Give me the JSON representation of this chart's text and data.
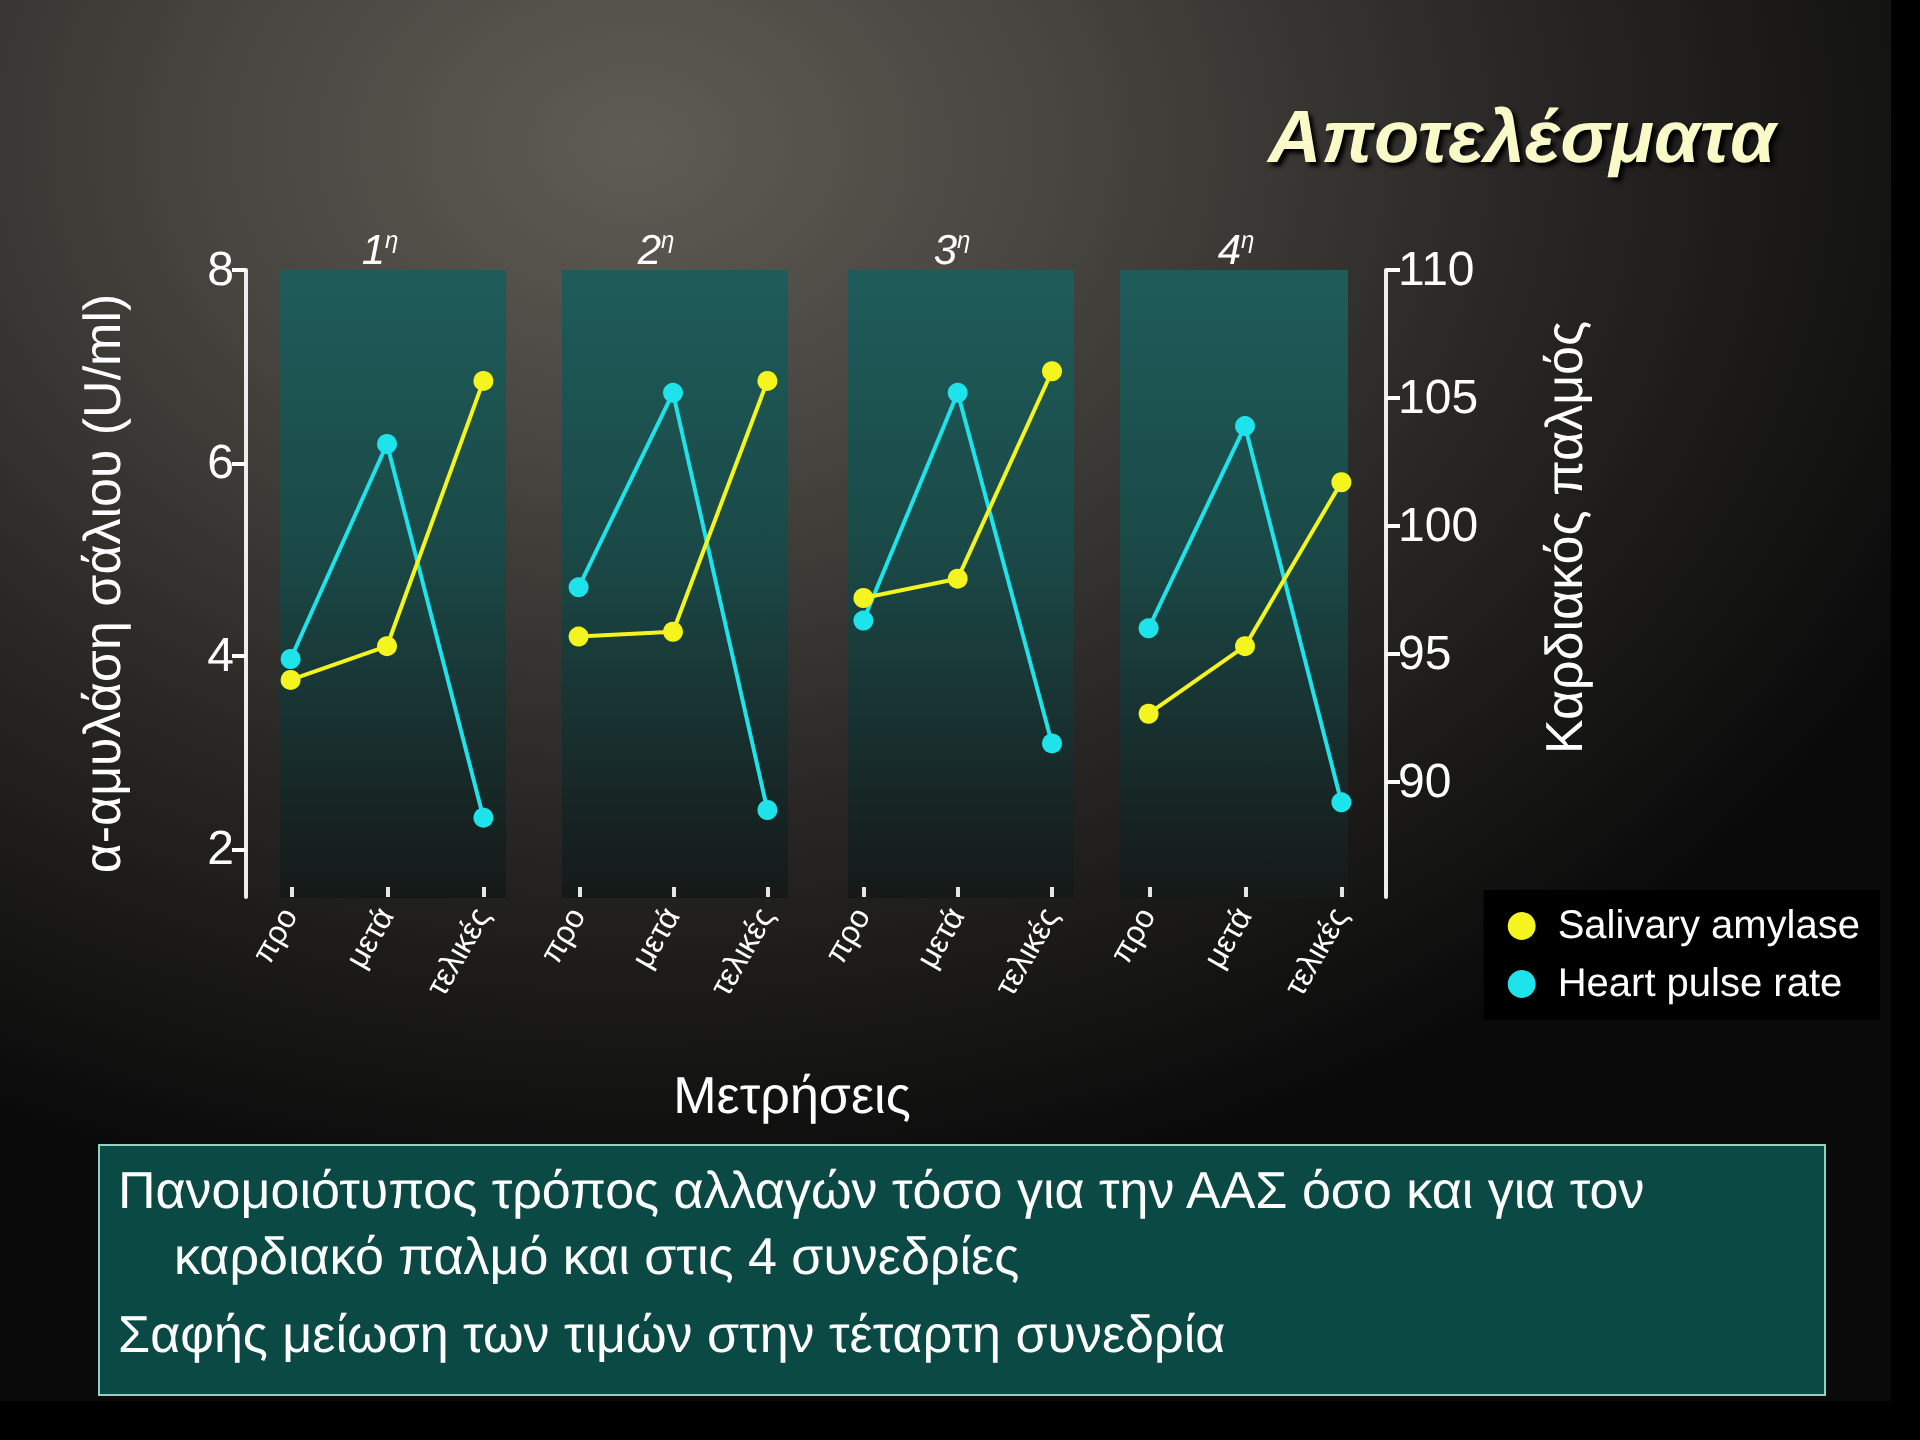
{
  "chart_data": [
    {
      "type": "line",
      "title": "1$^{η}$",
      "xlabel": "Μετρήσεις",
      "ylabel": "α-αμυλάση σάλιου (U/ml)",
      "categories": [
        "προ",
        "μετά",
        "τελικές"
      ],
      "series": [
        {
          "color": "#f4f41e",
          "values": [
            3.75,
            4.1,
            6.85
          ]
        },
        {
          "color": "#1fe3ea",
          "values": [
            94.8,
            103.2,
            88.6
          ],
          "axis": "y2"
        }
      ],
      "ylim": [
        1.5,
        8
      ],
      "yticks": [
        2,
        4,
        6,
        8
      ],
      "y2lim": [
        85.5,
        110
      ],
      "marker": "circle",
      "tick_labels": "xy"
    },
    {
      "type": "line",
      "title": "2$^{η}$",
      "categories": [
        "προ",
        "μετά",
        "τελικές"
      ],
      "series": [
        {
          "color": "#f4f41e",
          "values": [
            4.2,
            4.25,
            6.85
          ]
        },
        {
          "color": "#1fe3ea",
          "values": [
            97.6,
            105.2,
            88.9
          ],
          "axis": "y2"
        }
      ],
      "ylim": [
        1.5,
        8
      ],
      "y2lim": [
        85.5,
        110
      ],
      "marker": "circle",
      "tick_labels": "x"
    },
    {
      "type": "line",
      "title": "3$^{η}$",
      "categories": [
        "προ",
        "μετά",
        "τελικές"
      ],
      "series": [
        {
          "color": "#f4f41e",
          "values": [
            4.6,
            4.8,
            6.95
          ]
        },
        {
          "color": "#1fe3ea",
          "values": [
            96.3,
            105.2,
            91.5
          ],
          "axis": "y2"
        }
      ],
      "ylim": [
        1.5,
        8
      ],
      "y2lim": [
        85.5,
        110
      ],
      "marker": "circle",
      "tick_labels": "x"
    },
    {
      "type": "line",
      "title": "4$^{η}$",
      "y2label": "Καρδιακός παλμός",
      "categories": [
        "προ",
        "μετά",
        "τελικές"
      ],
      "series": [
        {
          "name": "Salivary amylase",
          "color": "#f4f41e",
          "values": [
            3.4,
            4.1,
            5.8
          ]
        },
        {
          "name": "Heart pulse rate",
          "color": "#1fe3ea",
          "values": [
            96.0,
            103.9,
            89.2
          ],
          "axis": "y2"
        }
      ],
      "ylim": [
        1.5,
        8
      ],
      "y2lim": [
        85.5,
        110
      ],
      "y2ticks": [
        90,
        95,
        100,
        105,
        110
      ],
      "marker": "circle",
      "tick_labels": "xy2",
      "legend": "bottom right"
    },
    {
      "type": "other",
      "title": "Αποτελέσματα",
      "annotations": [
        "Πανομοιότυπος τρόπος αλλαγών τόσο για την ΑΑΣ όσο και για τον καρδιακό παλμό και στις 4 συνεδρίες",
        "Σαφής μείωση των τιμών στην τέταρτη συνεδρία"
      ]
    }
  ]
}
